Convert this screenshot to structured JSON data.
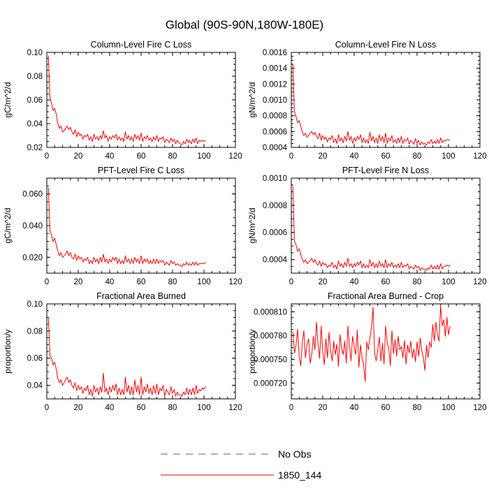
{
  "figure": {
    "title": "Global (90S-90N,180W-180E)"
  },
  "legend": {
    "items": [
      {
        "label": "No Obs",
        "color": "#5a5ab4",
        "dash": true
      },
      {
        "label": "1850_144",
        "color": "#ff0000",
        "dash": false
      }
    ]
  },
  "chart_data": [
    {
      "type": "line",
      "title": "Column-Level Fire C Loss",
      "xlabel": "",
      "ylabel": "gC/m^2/d",
      "xlim": [
        0,
        120
      ],
      "ylim": [
        0.02,
        0.1
      ],
      "xticks": [
        "0",
        "20",
        "40",
        "60",
        "80",
        "100",
        "120"
      ],
      "yticks": [
        {
          "v": 0.02,
          "label": "0.02"
        },
        {
          "v": 0.04,
          "label": "0.04"
        },
        {
          "v": 0.06,
          "label": "0.06"
        },
        {
          "v": 0.08,
          "label": "0.08"
        },
        {
          "v": 0.1,
          "label": "0.10"
        }
      ],
      "series": [
        {
          "name": "1850_144",
          "color": "#ff0000",
          "x0": 1,
          "values": [
            0.097,
            0.062,
            0.057,
            0.051,
            0.053,
            0.048,
            0.04,
            0.036,
            0.038,
            0.033,
            0.034,
            0.036,
            0.038,
            0.035,
            0.037,
            0.033,
            0.031,
            0.035,
            0.029,
            0.033,
            0.03,
            0.031,
            0.027,
            0.03,
            0.029,
            0.031,
            0.026,
            0.029,
            0.025,
            0.031,
            0.027,
            0.029,
            0.026,
            0.03,
            0.027,
            0.034,
            0.028,
            0.03,
            0.025,
            0.029,
            0.027,
            0.03,
            0.028,
            0.031,
            0.026,
            0.029,
            0.026,
            0.028,
            0.025,
            0.033,
            0.027,
            0.03,
            0.026,
            0.029,
            0.025,
            0.031,
            0.027,
            0.03,
            0.026,
            0.032,
            0.025,
            0.029,
            0.027,
            0.03,
            0.026,
            0.028,
            0.025,
            0.029,
            0.026,
            0.03,
            0.025,
            0.028,
            0.027,
            0.029,
            0.024,
            0.027,
            0.026,
            0.024,
            0.028,
            0.025,
            0.027,
            0.023,
            0.026,
            0.024,
            0.023,
            0.022,
            0.025,
            0.023,
            0.027,
            0.024,
            0.026,
            0.023,
            0.027,
            0.024,
            0.028,
            0.023,
            0.026,
            0.025,
            0.026,
            0.025,
            0.026
          ]
        }
      ]
    },
    {
      "type": "line",
      "title": "Column-Level Fire N Loss",
      "xlabel": "",
      "ylabel": "gN/m^2/d",
      "xlim": [
        0,
        120
      ],
      "ylim": [
        0.0004,
        0.0016
      ],
      "xticks": [
        "0",
        "20",
        "40",
        "60",
        "80",
        "100",
        "120"
      ],
      "yticks": [
        {
          "v": 0.0004,
          "label": "0.0004"
        },
        {
          "v": 0.0006,
          "label": "0.0006"
        },
        {
          "v": 0.0008,
          "label": "0.0008"
        },
        {
          "v": 0.001,
          "label": "0.0010"
        },
        {
          "v": 0.0012,
          "label": "0.0012"
        },
        {
          "v": 0.0014,
          "label": "0.0014"
        },
        {
          "v": 0.0016,
          "label": "0.0016"
        }
      ],
      "series": [
        {
          "name": "1850_144",
          "color": "#ff0000",
          "x0": 1,
          "values": [
            0.00146,
            0.00085,
            0.00079,
            0.00071,
            0.00074,
            0.00067,
            0.00059,
            0.00055,
            0.00058,
            0.00053,
            0.00055,
            0.00058,
            0.0006,
            0.00056,
            0.00059,
            0.00054,
            0.00051,
            0.00058,
            0.00049,
            0.00055,
            0.0005,
            0.00053,
            0.00047,
            0.00052,
            0.0005,
            0.00055,
            0.00046,
            0.00051,
            0.00045,
            0.00056,
            0.00048,
            0.00052,
            0.00046,
            0.00054,
            0.00048,
            0.0006,
            0.00049,
            0.00054,
            0.00045,
            0.00052,
            0.00048,
            0.00054,
            0.0005,
            0.00056,
            0.00046,
            0.00052,
            0.00046,
            0.0005,
            0.00045,
            0.00059,
            0.00048,
            0.00054,
            0.00046,
            0.00052,
            0.00045,
            0.00056,
            0.00048,
            0.00054,
            0.00046,
            0.00058,
            0.00045,
            0.00052,
            0.00048,
            0.00055,
            0.00046,
            0.0005,
            0.00045,
            0.00052,
            0.00046,
            0.00054,
            0.00045,
            0.0005,
            0.00048,
            0.00052,
            0.00044,
            0.00049,
            0.00047,
            0.00044,
            0.00051,
            0.00045,
            0.00049,
            0.00043,
            0.00047,
            0.00044,
            0.00045,
            0.00043,
            0.00047,
            0.00045,
            0.0005,
            0.00045,
            0.00048,
            0.00045,
            0.0005,
            0.00045,
            0.00052,
            0.00046,
            0.00049,
            0.00048,
            0.0005,
            0.00049,
            0.0005
          ]
        }
      ]
    },
    {
      "type": "line",
      "title": "PFT-Level Fire C Loss",
      "xlabel": "",
      "ylabel": "gC/m^2/d",
      "xlim": [
        0,
        120
      ],
      "ylim": [
        0.01,
        0.07
      ],
      "xticks": [
        "0",
        "20",
        "40",
        "60",
        "80",
        "100",
        "120"
      ],
      "yticks": [
        {
          "v": 0.02,
          "label": "0.020"
        },
        {
          "v": 0.04,
          "label": "0.040"
        },
        {
          "v": 0.06,
          "label": "0.060"
        }
      ],
      "series": [
        {
          "name": "1850_144",
          "color": "#ff0000",
          "x0": 1,
          "values": [
            0.064,
            0.037,
            0.034,
            0.03,
            0.032,
            0.028,
            0.024,
            0.021,
            0.023,
            0.02,
            0.021,
            0.022,
            0.024,
            0.021,
            0.023,
            0.02,
            0.019,
            0.022,
            0.018,
            0.021,
            0.019,
            0.02,
            0.017,
            0.019,
            0.018,
            0.02,
            0.016,
            0.018,
            0.016,
            0.02,
            0.017,
            0.019,
            0.016,
            0.02,
            0.017,
            0.022,
            0.017,
            0.019,
            0.016,
            0.019,
            0.017,
            0.02,
            0.018,
            0.02,
            0.016,
            0.019,
            0.016,
            0.018,
            0.016,
            0.021,
            0.017,
            0.019,
            0.016,
            0.019,
            0.016,
            0.02,
            0.017,
            0.019,
            0.016,
            0.021,
            0.016,
            0.019,
            0.017,
            0.019,
            0.016,
            0.018,
            0.016,
            0.019,
            0.016,
            0.019,
            0.016,
            0.018,
            0.017,
            0.018,
            0.015,
            0.017,
            0.016,
            0.015,
            0.018,
            0.016,
            0.017,
            0.015,
            0.016,
            0.015,
            0.015,
            0.014,
            0.016,
            0.015,
            0.017,
            0.015,
            0.016,
            0.015,
            0.017,
            0.015,
            0.017,
            0.015,
            0.016,
            0.016,
            0.016,
            0.016,
            0.017
          ]
        }
      ]
    },
    {
      "type": "line",
      "title": "PFT-Level Fire N Loss",
      "xlabel": "",
      "ylabel": "gN/m^2/d",
      "xlim": [
        0,
        120
      ],
      "ylim": [
        0.0003,
        0.001
      ],
      "xticks": [
        "0",
        "20",
        "40",
        "60",
        "80",
        "100",
        "120"
      ],
      "yticks": [
        {
          "v": 0.0004,
          "label": "0.0004"
        },
        {
          "v": 0.0006,
          "label": "0.0006"
        },
        {
          "v": 0.0008,
          "label": "0.0008"
        },
        {
          "v": 0.001,
          "label": "0.0010"
        }
      ],
      "series": [
        {
          "name": "1850_144",
          "color": "#ff0000",
          "x0": 1,
          "values": [
            0.00094,
            0.00053,
            0.00051,
            0.00046,
            0.00048,
            0.00044,
            0.0004,
            0.00038,
            0.0004,
            0.00037,
            0.00038,
            0.00039,
            0.00041,
            0.00038,
            0.0004,
            0.00037,
            0.00036,
            0.00039,
            0.00035,
            0.00038,
            0.00036,
            0.00037,
            0.00034,
            0.00036,
            0.00035,
            0.00038,
            0.00034,
            0.00036,
            0.00033,
            0.00039,
            0.00035,
            0.00037,
            0.00034,
            0.00038,
            0.00035,
            0.00041,
            0.00035,
            0.00037,
            0.00034,
            0.00037,
            0.00035,
            0.00038,
            0.00036,
            0.00039,
            0.00034,
            0.00037,
            0.00034,
            0.00036,
            0.00034,
            0.0004,
            0.00035,
            0.00038,
            0.00034,
            0.00037,
            0.00034,
            0.00039,
            0.00035,
            0.00037,
            0.00034,
            0.0004,
            0.00034,
            0.00037,
            0.00035,
            0.00038,
            0.00034,
            0.00036,
            0.00034,
            0.00037,
            0.00034,
            0.00038,
            0.00034,
            0.00036,
            0.00035,
            0.00037,
            0.00033,
            0.00035,
            0.00034,
            0.00033,
            0.00036,
            0.00034,
            0.00035,
            0.00032,
            0.00034,
            0.00033,
            0.00033,
            0.00032,
            0.00034,
            0.00033,
            0.00036,
            0.00033,
            0.00035,
            0.00033,
            0.00036,
            0.00033,
            0.00037,
            0.00033,
            0.00035,
            0.00035,
            0.00036,
            0.00035,
            0.00036
          ]
        }
      ]
    },
    {
      "type": "line",
      "title": "Fractional Area Burned",
      "xlabel": "",
      "ylabel": "proportion/y",
      "xlim": [
        0,
        120
      ],
      "ylim": [
        0.03,
        0.1
      ],
      "xticks": [
        "0",
        "20",
        "40",
        "60",
        "80",
        "100",
        "120"
      ],
      "yticks": [
        {
          "v": 0.04,
          "label": "0.04"
        },
        {
          "v": 0.06,
          "label": "0.06"
        },
        {
          "v": 0.08,
          "label": "0.08"
        },
        {
          "v": 0.1,
          "label": "0.10"
        }
      ],
      "series": [
        {
          "name": "1850_144",
          "color": "#ff0000",
          "x0": 1,
          "values": [
            0.09,
            0.062,
            0.06,
            0.055,
            0.057,
            0.052,
            0.045,
            0.042,
            0.044,
            0.04,
            0.042,
            0.044,
            0.046,
            0.042,
            0.044,
            0.04,
            0.038,
            0.042,
            0.036,
            0.04,
            0.037,
            0.039,
            0.034,
            0.038,
            0.036,
            0.04,
            0.033,
            0.037,
            0.032,
            0.04,
            0.035,
            0.038,
            0.033,
            0.039,
            0.035,
            0.049,
            0.035,
            0.038,
            0.033,
            0.039,
            0.035,
            0.04,
            0.036,
            0.041,
            0.033,
            0.038,
            0.033,
            0.037,
            0.033,
            0.046,
            0.035,
            0.04,
            0.033,
            0.039,
            0.033,
            0.044,
            0.035,
            0.04,
            0.033,
            0.046,
            0.033,
            0.039,
            0.035,
            0.041,
            0.034,
            0.038,
            0.033,
            0.04,
            0.034,
            0.041,
            0.033,
            0.038,
            0.036,
            0.04,
            0.032,
            0.037,
            0.035,
            0.033,
            0.039,
            0.034,
            0.037,
            0.032,
            0.035,
            0.033,
            0.033,
            0.032,
            0.035,
            0.033,
            0.038,
            0.033,
            0.037,
            0.033,
            0.038,
            0.033,
            0.04,
            0.034,
            0.037,
            0.036,
            0.038,
            0.037,
            0.039
          ]
        }
      ]
    },
    {
      "type": "line",
      "title": "Fractional Area Burned - Crop",
      "xlabel": "",
      "ylabel": "proportion/y",
      "xlim": [
        0,
        120
      ],
      "ylim": [
        0.0007,
        0.00082
      ],
      "xticks": [
        "0",
        "20",
        "40",
        "60",
        "80",
        "100",
        "120"
      ],
      "yticks": [
        {
          "v": 0.00072,
          "label": "0.000720"
        },
        {
          "v": 0.00075,
          "label": "0.000750"
        },
        {
          "v": 0.00078,
          "label": "0.000780"
        },
        {
          "v": 0.00081,
          "label": "0.000810"
        }
      ],
      "series": [
        {
          "name": "1850_144",
          "color": "#ff0000",
          "x0": 1,
          "values": [
            0.000785,
            0.000758,
            0.000768,
            0.000788,
            0.000754,
            0.000742,
            0.000772,
            0.000786,
            0.000752,
            0.000768,
            0.000776,
            0.000745,
            0.000756,
            0.000779,
            0.000762,
            0.000797,
            0.00077,
            0.000751,
            0.000792,
            0.00076,
            0.000743,
            0.000776,
            0.000752,
            0.000784,
            0.000762,
            0.000748,
            0.000773,
            0.000756,
            0.000769,
            0.000741,
            0.000781,
            0.000764,
            0.000756,
            0.000773,
            0.000745,
            0.000792,
            0.000767,
            0.000748,
            0.000779,
            0.000766,
            0.000756,
            0.000787,
            0.00074,
            0.000768,
            0.000752,
            0.000743,
            0.000722,
            0.000772,
            0.000762,
            0.000777,
            0.00079,
            0.000816,
            0.000758,
            0.000748,
            0.000762,
            0.000778,
            0.000748,
            0.00077,
            0.000744,
            0.000792,
            0.000771,
            0.000764,
            0.000742,
            0.000786,
            0.000757,
            0.000775,
            0.000754,
            0.000779,
            0.000762,
            0.000766,
            0.000752,
            0.000774,
            0.000744,
            0.000768,
            0.000758,
            0.000773,
            0.000752,
            0.000763,
            0.000747,
            0.000772,
            0.000754,
            0.000777,
            0.000761,
            0.000752,
            0.000736,
            0.000768,
            0.000752,
            0.000772,
            0.000765,
            0.000794,
            0.000773,
            0.000797,
            0.000781,
            0.000773,
            0.000818,
            0.000792,
            0.0008,
            0.000779,
            0.000803,
            0.000781,
            0.000792
          ]
        }
      ]
    }
  ]
}
